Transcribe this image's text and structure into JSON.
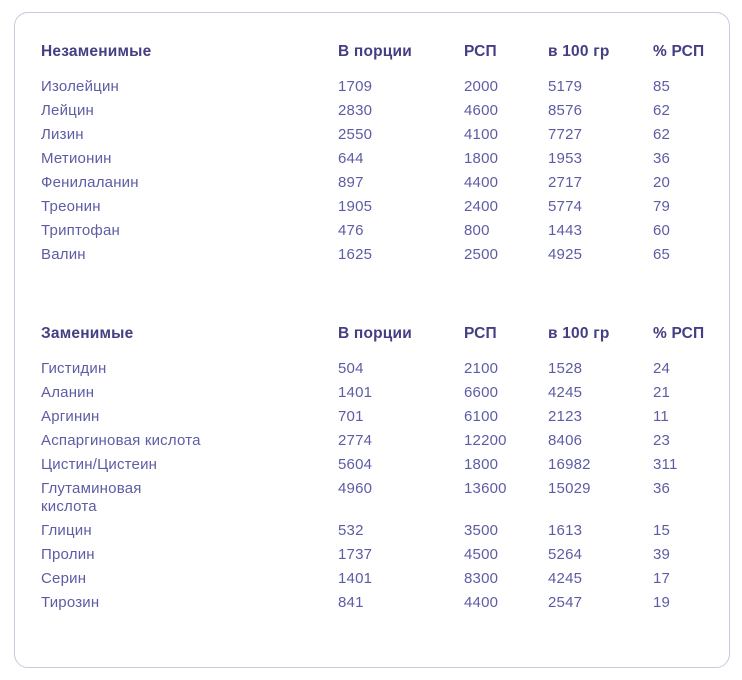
{
  "card_name": "amino-acid-composition-table",
  "colors": {
    "header_text": "#443e82",
    "body_text": "#5d5ca4",
    "card_border": "#c9c9dd",
    "background": "#ffffff"
  },
  "tables": [
    {
      "header": {
        "name": "Незаменимые",
        "portion": "В порции",
        "rsp": "РСП",
        "per100": "в 100 гр",
        "pct": "% РСП"
      },
      "rows": [
        {
          "name": "Изолейцин",
          "portion": "1709",
          "rsp": "2000",
          "per100": "5179",
          "pct": "85"
        },
        {
          "name": "Лейцин",
          "portion": "2830",
          "rsp": "4600",
          "per100": "8576",
          "pct": "62"
        },
        {
          "name": "Лизин",
          "portion": "2550",
          "rsp": "4100",
          "per100": "7727",
          "pct": "62"
        },
        {
          "name": "Метионин",
          "portion": "644",
          "rsp": "1800",
          "per100": "1953",
          "pct": "36"
        },
        {
          "name": "Фенилаланин",
          "portion": "897",
          "rsp": "4400",
          "per100": "2717",
          "pct": "20"
        },
        {
          "name": "Треонин",
          "portion": "1905",
          "rsp": "2400",
          "per100": "5774",
          "pct": "79"
        },
        {
          "name": "Триптофан",
          "portion": "476",
          "rsp": "800",
          "per100": "1443",
          "pct": "60"
        },
        {
          "name": "Валин",
          "portion": "1625",
          "rsp": "2500",
          "per100": "4925",
          "pct": "65"
        }
      ]
    },
    {
      "header": {
        "name": "Заменимые",
        "portion": "В порции",
        "rsp": "РСП",
        "per100": "в 100 гр",
        "pct": "% РСП"
      },
      "rows": [
        {
          "name": "Гистидин",
          "portion": "504",
          "rsp": "2100",
          "per100": "1528",
          "pct": "24"
        },
        {
          "name": "Аланин",
          "portion": "1401",
          "rsp": "6600",
          "per100": "4245",
          "pct": "21"
        },
        {
          "name": "Аргинин",
          "portion": "701",
          "rsp": "6100",
          "per100": "2123",
          "pct": "11"
        },
        {
          "name": "Аспаргиновая кислота",
          "portion": "2774",
          "rsp": "12200",
          "per100": "8406",
          "pct": "23"
        },
        {
          "name": "Цистин/Цистеин",
          "portion": "5604",
          "rsp": "1800",
          "per100": "16982",
          "pct": "311"
        },
        {
          "name": "Глутаминовая кислота",
          "portion": "4960",
          "rsp": "13600",
          "per100": "15029",
          "pct": "36"
        },
        {
          "name": "Глицин",
          "portion": "532",
          "rsp": "3500",
          "per100": "1613",
          "pct": "15"
        },
        {
          "name": "Пролин",
          "portion": "1737",
          "rsp": "4500",
          "per100": "5264",
          "pct": "39"
        },
        {
          "name": "Серин",
          "portion": "1401",
          "rsp": "8300",
          "per100": "4245",
          "pct": "17"
        },
        {
          "name": "Тирозин",
          "portion": "841",
          "rsp": "4400",
          "per100": "2547",
          "pct": "19"
        }
      ]
    }
  ]
}
